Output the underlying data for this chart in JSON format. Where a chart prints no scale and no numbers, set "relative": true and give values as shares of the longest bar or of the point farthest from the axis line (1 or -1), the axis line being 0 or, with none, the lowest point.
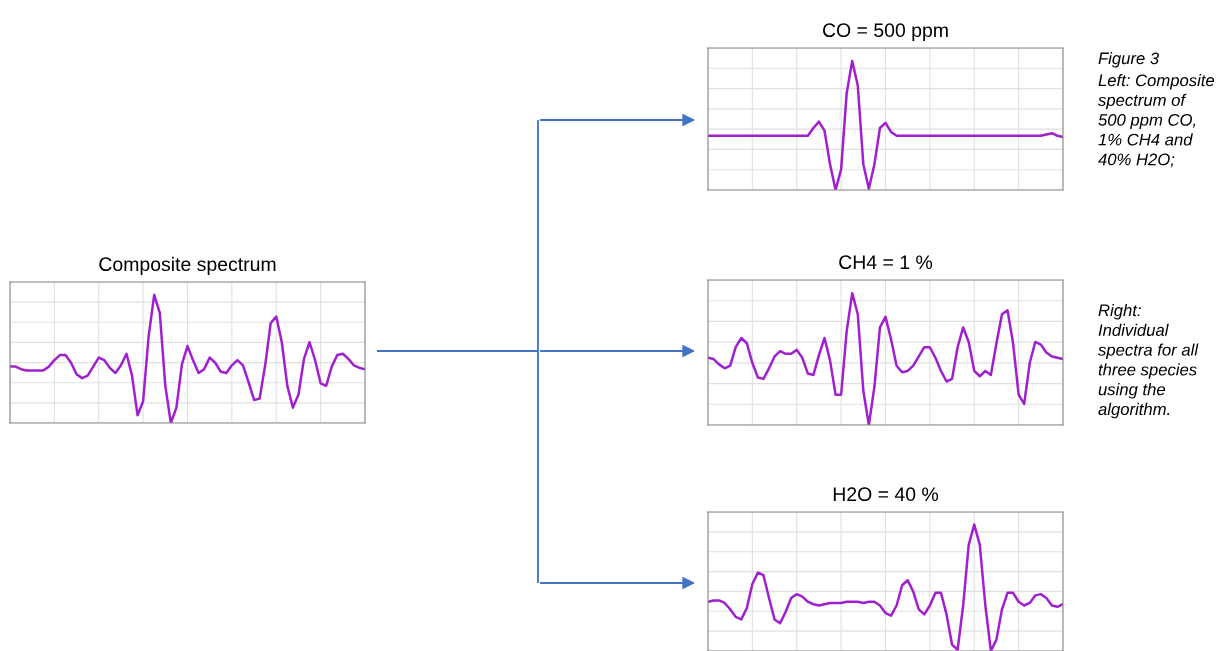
{
  "chart_data": [
    {
      "type": "line",
      "title": "Composite spectrum",
      "relative": true,
      "grid": true,
      "categories": [
        null,
        null,
        null,
        null,
        null,
        null,
        null,
        null,
        null,
        null,
        null,
        null,
        null,
        null,
        null,
        null,
        null,
        null,
        null,
        null,
        null,
        null,
        null,
        null,
        null,
        null,
        null,
        null,
        null,
        null,
        null,
        null,
        null,
        null,
        null,
        null,
        null,
        null,
        null,
        null,
        null,
        null,
        null,
        null,
        null,
        null,
        null,
        null,
        null,
        null,
        null,
        null,
        null,
        null,
        null,
        null,
        null,
        null,
        null,
        null,
        null,
        null,
        null,
        null,
        null
      ],
      "series": [
        {
          "color": "#a020d0",
          "values": [
            0.44,
            0.44,
            0.42,
            0.41,
            0.41,
            0.41,
            0.41,
            0.44,
            0.49,
            0.53,
            0.53,
            0.47,
            0.38,
            0.35,
            0.37,
            0.44,
            0.51,
            0.49,
            0.43,
            0.39,
            0.45,
            0.54,
            0.37,
            0.06,
            0.17,
            0.68,
            1.0,
            0.86,
            0.29,
            0.0,
            0.12,
            0.46,
            0.6,
            0.49,
            0.39,
            0.42,
            0.51,
            0.47,
            0.4,
            0.39,
            0.45,
            0.49,
            0.45,
            0.32,
            0.18,
            0.19,
            0.45,
            0.78,
            0.83,
            0.63,
            0.29,
            0.12,
            0.22,
            0.5,
            0.63,
            0.49,
            0.31,
            0.29,
            0.44,
            0.53,
            0.54,
            0.5,
            0.45,
            0.43,
            0.42
          ]
        }
      ]
    },
    {
      "type": "line",
      "title": "CO = 500 ppm",
      "relative": true,
      "grid": true,
      "categories": [
        null,
        null,
        null,
        null,
        null,
        null,
        null,
        null,
        null,
        null,
        null,
        null,
        null,
        null,
        null,
        null,
        null,
        null,
        null,
        null,
        null,
        null,
        null,
        null,
        null,
        null,
        null,
        null,
        null,
        null,
        null,
        null,
        null,
        null,
        null,
        null,
        null,
        null,
        null,
        null,
        null,
        null,
        null,
        null,
        null,
        null,
        null,
        null,
        null,
        null,
        null,
        null,
        null,
        null,
        null,
        null,
        null,
        null,
        null,
        null,
        null,
        null,
        null,
        null,
        null
      ],
      "series": [
        {
          "color": "#a020d0",
          "values": [
            0.42,
            0.42,
            0.42,
            0.42,
            0.42,
            0.42,
            0.42,
            0.42,
            0.42,
            0.42,
            0.42,
            0.42,
            0.42,
            0.42,
            0.42,
            0.42,
            0.42,
            0.42,
            0.42,
            0.48,
            0.53,
            0.46,
            0.2,
            0.0,
            0.16,
            0.75,
            1.0,
            0.81,
            0.2,
            0.01,
            0.2,
            0.48,
            0.52,
            0.45,
            0.42,
            0.42,
            0.42,
            0.42,
            0.42,
            0.42,
            0.42,
            0.42,
            0.42,
            0.42,
            0.42,
            0.42,
            0.42,
            0.42,
            0.42,
            0.42,
            0.42,
            0.42,
            0.42,
            0.42,
            0.42,
            0.42,
            0.42,
            0.42,
            0.42,
            0.42,
            0.42,
            0.43,
            0.44,
            0.42,
            0.41
          ]
        }
      ]
    },
    {
      "type": "line",
      "title": "CH4 = 1 %",
      "relative": true,
      "grid": true,
      "categories": [
        null,
        null,
        null,
        null,
        null,
        null,
        null,
        null,
        null,
        null,
        null,
        null,
        null,
        null,
        null,
        null,
        null,
        null,
        null,
        null,
        null,
        null,
        null,
        null,
        null,
        null,
        null,
        null,
        null,
        null,
        null,
        null,
        null,
        null,
        null,
        null,
        null,
        null,
        null,
        null,
        null,
        null,
        null,
        null,
        null,
        null,
        null,
        null,
        null,
        null,
        null,
        null,
        null,
        null,
        null,
        null,
        null,
        null,
        null,
        null,
        null,
        null,
        null,
        null,
        null
      ],
      "series": [
        {
          "color": "#a020d0",
          "values": [
            0.51,
            0.5,
            0.46,
            0.43,
            0.45,
            0.59,
            0.66,
            0.62,
            0.47,
            0.36,
            0.35,
            0.43,
            0.52,
            0.56,
            0.54,
            0.54,
            0.57,
            0.51,
            0.39,
            0.38,
            0.53,
            0.66,
            0.49,
            0.23,
            0.23,
            0.71,
            1.0,
            0.84,
            0.26,
            0.0,
            0.29,
            0.74,
            0.82,
            0.65,
            0.45,
            0.4,
            0.41,
            0.45,
            0.52,
            0.59,
            0.59,
            0.51,
            0.41,
            0.33,
            0.35,
            0.59,
            0.74,
            0.63,
            0.41,
            0.37,
            0.41,
            0.38,
            0.62,
            0.84,
            0.87,
            0.62,
            0.23,
            0.16,
            0.47,
            0.63,
            0.61,
            0.55,
            0.52,
            0.51,
            0.5
          ]
        }
      ]
    },
    {
      "type": "line",
      "title": "H2O = 40 %",
      "relative": true,
      "grid": true,
      "categories": [
        null,
        null,
        null,
        null,
        null,
        null,
        null,
        null,
        null,
        null,
        null,
        null,
        null,
        null,
        null,
        null,
        null,
        null,
        null,
        null,
        null,
        null,
        null,
        null,
        null,
        null,
        null,
        null,
        null,
        null,
        null,
        null,
        null,
        null,
        null,
        null,
        null,
        null,
        null,
        null,
        null,
        null,
        null,
        null,
        null,
        null,
        null,
        null,
        null,
        null,
        null,
        null,
        null,
        null,
        null,
        null,
        null,
        null,
        null,
        null,
        null,
        null,
        null,
        null,
        null
      ],
      "series": [
        {
          "color": "#a020d0",
          "values": [
            0.39,
            0.4,
            0.4,
            0.38,
            0.33,
            0.27,
            0.25,
            0.34,
            0.53,
            0.62,
            0.6,
            0.42,
            0.25,
            0.22,
            0.31,
            0.42,
            0.45,
            0.43,
            0.39,
            0.37,
            0.36,
            0.37,
            0.38,
            0.38,
            0.38,
            0.39,
            0.39,
            0.39,
            0.38,
            0.39,
            0.39,
            0.36,
            0.3,
            0.28,
            0.36,
            0.52,
            0.56,
            0.47,
            0.33,
            0.29,
            0.36,
            0.46,
            0.46,
            0.29,
            0.05,
            0.01,
            0.36,
            0.84,
            1.0,
            0.84,
            0.36,
            0.0,
            0.09,
            0.33,
            0.46,
            0.46,
            0.39,
            0.36,
            0.38,
            0.44,
            0.45,
            0.42,
            0.36,
            0.35,
            0.37
          ]
        }
      ]
    },
    {
      "type": "other",
      "annotations": [
        "Figure 3",
        "Left: Composite spectrum of 500 ppm CO, 1% CH4 and 40% H2O;",
        "Right: Individual spectra for all three species using the algorithm."
      ]
    }
  ]
}
